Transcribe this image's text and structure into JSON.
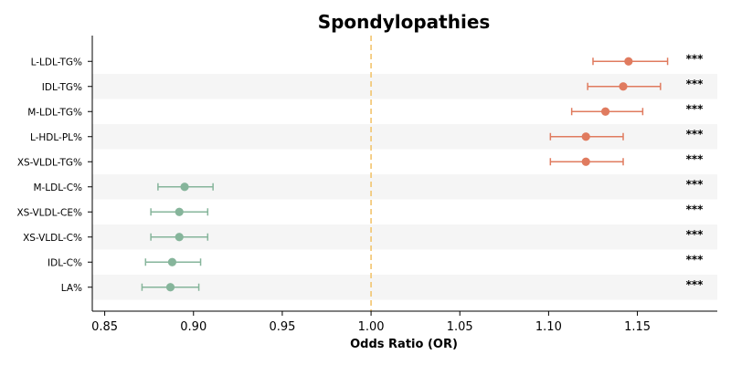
{
  "chart_data": {
    "type": "forest",
    "title": "Spondylopathies",
    "xlabel": "Odds Ratio (OR)",
    "xlim": [
      0.843,
      1.195
    ],
    "xticks": [
      0.85,
      0.9,
      0.95,
      1.0,
      1.05,
      1.1,
      1.15
    ],
    "xtick_labels": [
      "0.85",
      "0.90",
      "0.95",
      "1.00",
      "1.05",
      "1.10",
      "1.15"
    ],
    "reference_line": 1.0,
    "colors": {
      "positive": "#E07B5F",
      "negative": "#86B59B",
      "reference": "#F2C46D",
      "band": "#F5F5F5"
    },
    "rows": [
      {
        "label": "L-LDL-TG%",
        "or": 1.145,
        "lo": 1.125,
        "hi": 1.167,
        "sig": "***"
      },
      {
        "label": "IDL-TG%",
        "or": 1.142,
        "lo": 1.122,
        "hi": 1.163,
        "sig": "***"
      },
      {
        "label": "M-LDL-TG%",
        "or": 1.132,
        "lo": 1.113,
        "hi": 1.153,
        "sig": "***"
      },
      {
        "label": "L-HDL-PL%",
        "or": 1.121,
        "lo": 1.101,
        "hi": 1.142,
        "sig": "***"
      },
      {
        "label": "XS-VLDL-TG%",
        "or": 1.121,
        "lo": 1.101,
        "hi": 1.142,
        "sig": "***"
      },
      {
        "label": "M-LDL-C%",
        "or": 0.895,
        "lo": 0.88,
        "hi": 0.911,
        "sig": "***"
      },
      {
        "label": "XS-VLDL-CE%",
        "or": 0.892,
        "lo": 0.876,
        "hi": 0.908,
        "sig": "***"
      },
      {
        "label": "XS-VLDL-C%",
        "or": 0.892,
        "lo": 0.876,
        "hi": 0.908,
        "sig": "***"
      },
      {
        "label": "IDL-C%",
        "or": 0.888,
        "lo": 0.873,
        "hi": 0.904,
        "sig": "***"
      },
      {
        "label": "LA%",
        "or": 0.887,
        "lo": 0.871,
        "hi": 0.903,
        "sig": "***"
      }
    ]
  }
}
